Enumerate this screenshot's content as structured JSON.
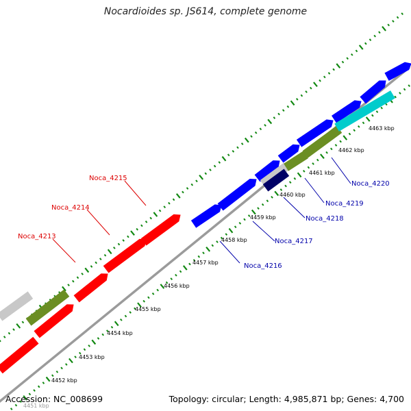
{
  "title": "Nocardioides sp. JS614, complete genome",
  "accession": "Accession: NC_008699",
  "summary": "Topology: circular; Length: 4,985,871 bp; Genes: 4,700",
  "colors": {
    "backbone": "#9b9b9b",
    "tick": "#118811",
    "label_left": "#dd0000",
    "label_right": "#0000aa",
    "red": "#ff0000",
    "blue": "#0000ff",
    "olive": "#6b8e23",
    "gray": "#c8c8c8",
    "cyan": "#00cccc",
    "navy": "#000066"
  },
  "scale_labels": [
    "4451 kbp",
    "4452 kbp",
    "4453 kbp",
    "4454 kbp",
    "4455 kbp",
    "4456 kbp",
    "4457 kbp",
    "4458 kbp",
    "4459 kbp",
    "4460 kbp",
    "4461 kbp",
    "4462 kbp",
    "4463 kbp"
  ],
  "gene_labels": [
    {
      "name": "Noca_4213",
      "side": "left"
    },
    {
      "name": "Noca_4214",
      "side": "left"
    },
    {
      "name": "Noca_4215",
      "side": "left"
    },
    {
      "name": "Noca_4216",
      "side": "right"
    },
    {
      "name": "Noca_4217",
      "side": "right"
    },
    {
      "name": "Noca_4218",
      "side": "right"
    },
    {
      "name": "Noca_4219",
      "side": "right"
    },
    {
      "name": "Noca_4220",
      "side": "right"
    }
  ]
}
